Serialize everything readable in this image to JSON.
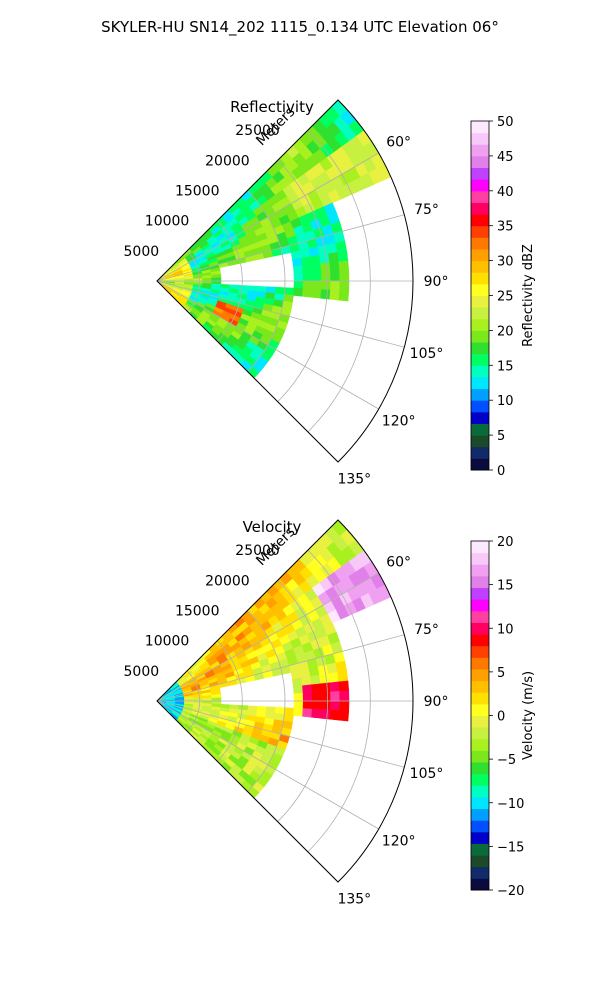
{
  "suptitle": "SKYLER-HU  SN14_202  1115_0.134 UTC Elevation 06°",
  "chart_data": [
    {
      "type": "heatmap",
      "projection": "polar-sector",
      "title": "Reflectivity",
      "range_label": "Meters",
      "range_ticks": [
        "5000",
        "10000",
        "15000",
        "20000",
        "25000"
      ],
      "range_values": [
        5000,
        10000,
        15000,
        20000,
        25000
      ],
      "range_max": 30000,
      "azimuth_range_deg": [
        45,
        135
      ],
      "azimuth_ticks": [
        "60°",
        "75°",
        "90°",
        "105°",
        "120°",
        "135°"
      ],
      "azimuth_values": [
        60,
        75,
        90,
        105,
        120,
        135
      ],
      "grid": true,
      "colorbar": {
        "label": "Reflectivity dBZ",
        "min": 0,
        "max": 50,
        "ticks": [
          "0",
          "5",
          "10",
          "15",
          "20",
          "25",
          "30",
          "35",
          "40",
          "45",
          "50"
        ],
        "colors": [
          "#0b0b3d",
          "#102a6a",
          "#1a4a2a",
          "#0a6b3a",
          "#0000c8",
          "#0050ff",
          "#00a0ff",
          "#00e6ff",
          "#00ffc0",
          "#00ff60",
          "#30e030",
          "#7ae81a",
          "#a8f020",
          "#c8f040",
          "#e8f040",
          "#ffff20",
          "#ffe000",
          "#ffc000",
          "#ffa000",
          "#ff7800",
          "#ff4000",
          "#ff0000",
          "#ff0060",
          "#ff40a0",
          "#ff00ff",
          "#c040ff",
          "#e080e8",
          "#f0a0f0",
          "#f8c8f8",
          "#fde8fd"
        ]
      },
      "field_summary": "echoes mostly 15–25 dBZ over 5–20 km, with cores of 30–35 dBZ near 60° and 115°"
    },
    {
      "type": "heatmap",
      "projection": "polar-sector",
      "title": "Velocity",
      "range_label": "Meters",
      "range_ticks": [
        "5000",
        "10000",
        "15000",
        "20000",
        "25000"
      ],
      "range_values": [
        5000,
        10000,
        15000,
        20000,
        25000
      ],
      "range_max": 30000,
      "azimuth_range_deg": [
        45,
        135
      ],
      "azimuth_ticks": [
        "60°",
        "75°",
        "90°",
        "105°",
        "120°",
        "135°"
      ],
      "azimuth_values": [
        60,
        75,
        90,
        105,
        120,
        135
      ],
      "grid": true,
      "colorbar": {
        "label": "Velocity (m/s)",
        "min": -20,
        "max": 20,
        "ticks": [
          "−20",
          "−15",
          "−10",
          "−5",
          "0",
          "5",
          "10",
          "15",
          "20"
        ],
        "colors": [
          "#0b0b3d",
          "#102a6a",
          "#1a4a2a",
          "#0a6b3a",
          "#0000c8",
          "#0050ff",
          "#00a0ff",
          "#00e6ff",
          "#00ffc0",
          "#00ff60",
          "#30e030",
          "#7ae81a",
          "#a8f020",
          "#c8f040",
          "#e8f040",
          "#ffff20",
          "#ffe000",
          "#ffc000",
          "#ffa000",
          "#ff7800",
          "#ff4000",
          "#ff0000",
          "#ff0060",
          "#ff40a0",
          "#ff00ff",
          "#c040ff",
          "#e080e8",
          "#f0a0f0",
          "#f8c8f8",
          "#fde8fd"
        ]
      },
      "field_summary": "around −10 m/s within 3 km, −5 to 0 m/s toward 120°, 0 to 5 m/s over most of the sector, 10 m/s near 90° at 18–20 km, about 17 m/s near 60° at 25 km"
    }
  ]
}
